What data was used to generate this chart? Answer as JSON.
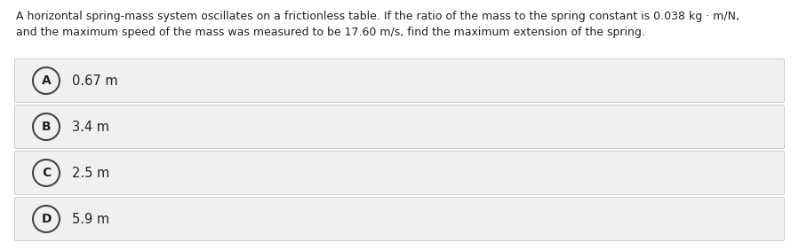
{
  "question_line1": "A horizontal spring-mass system oscillates on a frictionless table. If the ratio of the mass to the spring constant is 0.038 kg · m/N,",
  "question_line2": "and the maximum speed of the mass was measured to be 17.60 m/s, find the maximum extension of the spring.",
  "options": [
    {
      "label": "A",
      "text": "0.67 m"
    },
    {
      "label": "B",
      "text": "3.4 m"
    },
    {
      "label": "C",
      "text": "2.5 m"
    },
    {
      "label": "D",
      "text": "5.9 m"
    }
  ],
  "bg_color": "#ffffff",
  "option_bg_color": "#f0f0f0",
  "option_border_color": "#cccccc",
  "text_color": "#222222",
  "circle_edge_color": "#444444",
  "circle_face_color": "#f0f0f0",
  "question_fontsize": 9.0,
  "option_fontsize": 10.5,
  "label_fontsize": 10.0,
  "fig_width": 8.99,
  "fig_height": 2.82,
  "dpi": 100
}
